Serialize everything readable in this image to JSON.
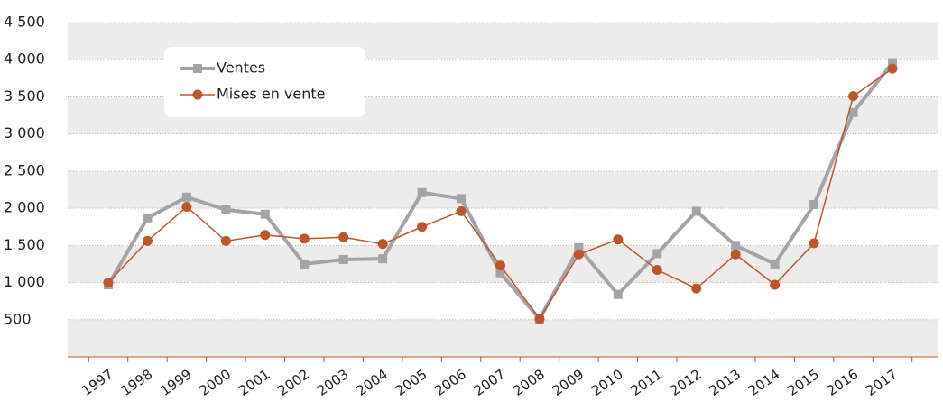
{
  "chart_data": {
    "type": "line",
    "categories": [
      "1997",
      "1998",
      "1999",
      "2000",
      "2001",
      "2002",
      "2003",
      "2004",
      "2005",
      "2006",
      "2007",
      "2008",
      "2009",
      "2010",
      "2011",
      "2012",
      "2013",
      "2014",
      "2015",
      "2016",
      "2017"
    ],
    "series": [
      {
        "name": "Ventes",
        "color": "#a3a3a8",
        "marker": "square",
        "values": [
          970,
          1870,
          2150,
          1980,
          1920,
          1250,
          1310,
          1320,
          2210,
          2130,
          1130,
          510,
          1470,
          840,
          1390,
          1960,
          1500,
          1250,
          2050,
          3290,
          3960
        ]
      },
      {
        "name": "Mises en vente",
        "color": "#c0552b",
        "marker": "circle",
        "values": [
          1000,
          1560,
          2020,
          1560,
          1640,
          1590,
          1610,
          1520,
          1750,
          1960,
          1230,
          510,
          1380,
          1580,
          1170,
          920,
          1380,
          970,
          1530,
          3510,
          3880
        ]
      }
    ],
    "ylim": [
      0,
      4500
    ],
    "yticks": [
      500,
      {
        "value": 1000,
        "label": "1 000"
      },
      {
        "value": 1500,
        "label": "1 500"
      },
      {
        "value": 2000,
        "label": "2 000"
      },
      {
        "value": 2500,
        "label": "2 500"
      },
      {
        "value": 3000,
        "label": "3 000"
      },
      {
        "value": 3500,
        "label": "3 500"
      },
      {
        "value": 4000,
        "label": "4 000"
      },
      {
        "value": 4500,
        "label": "4 500"
      }
    ],
    "grid": true,
    "legend": "upper left"
  }
}
